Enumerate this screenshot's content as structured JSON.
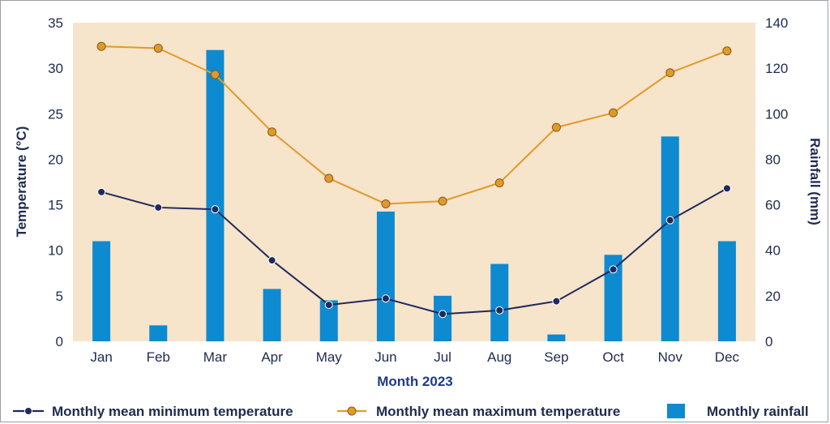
{
  "chart_data": {
    "type": "bar+line",
    "xlabel": "Month 2023",
    "ylabel_left": "Temperature (°C)",
    "ylabel_right": "Rainfall (mm)",
    "ylim_left": [
      0,
      35
    ],
    "ylim_right": [
      0,
      140
    ],
    "yticks_left": [
      "0",
      "5",
      "10",
      "15",
      "20",
      "25",
      "30",
      "35"
    ],
    "yticks_right": [
      "0",
      "20",
      "40",
      "60",
      "80",
      "100",
      "120",
      "140"
    ],
    "categories": [
      "Jan",
      "Feb",
      "Mar",
      "Apr",
      "May",
      "Jun",
      "Jul",
      "Aug",
      "Sep",
      "Oct",
      "Nov",
      "Dec"
    ],
    "series": [
      {
        "name": "Monthly mean minimum temperature",
        "type": "line",
        "axis": "left",
        "color": "#1f2a5c",
        "values": [
          16.4,
          14.7,
          14.5,
          8.9,
          4.0,
          4.7,
          3.0,
          3.4,
          4.4,
          7.9,
          13.3,
          16.8
        ]
      },
      {
        "name": "Monthly mean maximum temperature",
        "type": "line",
        "axis": "left",
        "color": "#e09a2c",
        "values": [
          32.4,
          32.2,
          29.3,
          23.0,
          17.9,
          15.1,
          15.4,
          17.4,
          23.5,
          25.1,
          29.5,
          31.9
        ]
      },
      {
        "name": "Monthly rainfall",
        "type": "bar",
        "axis": "right",
        "color": "#0e8ad0",
        "values": [
          44,
          7,
          128,
          23,
          18,
          57,
          20,
          34,
          3,
          38,
          90,
          44
        ]
      }
    ],
    "plot_background": "#f6e4cb",
    "legend_position": "bottom"
  }
}
